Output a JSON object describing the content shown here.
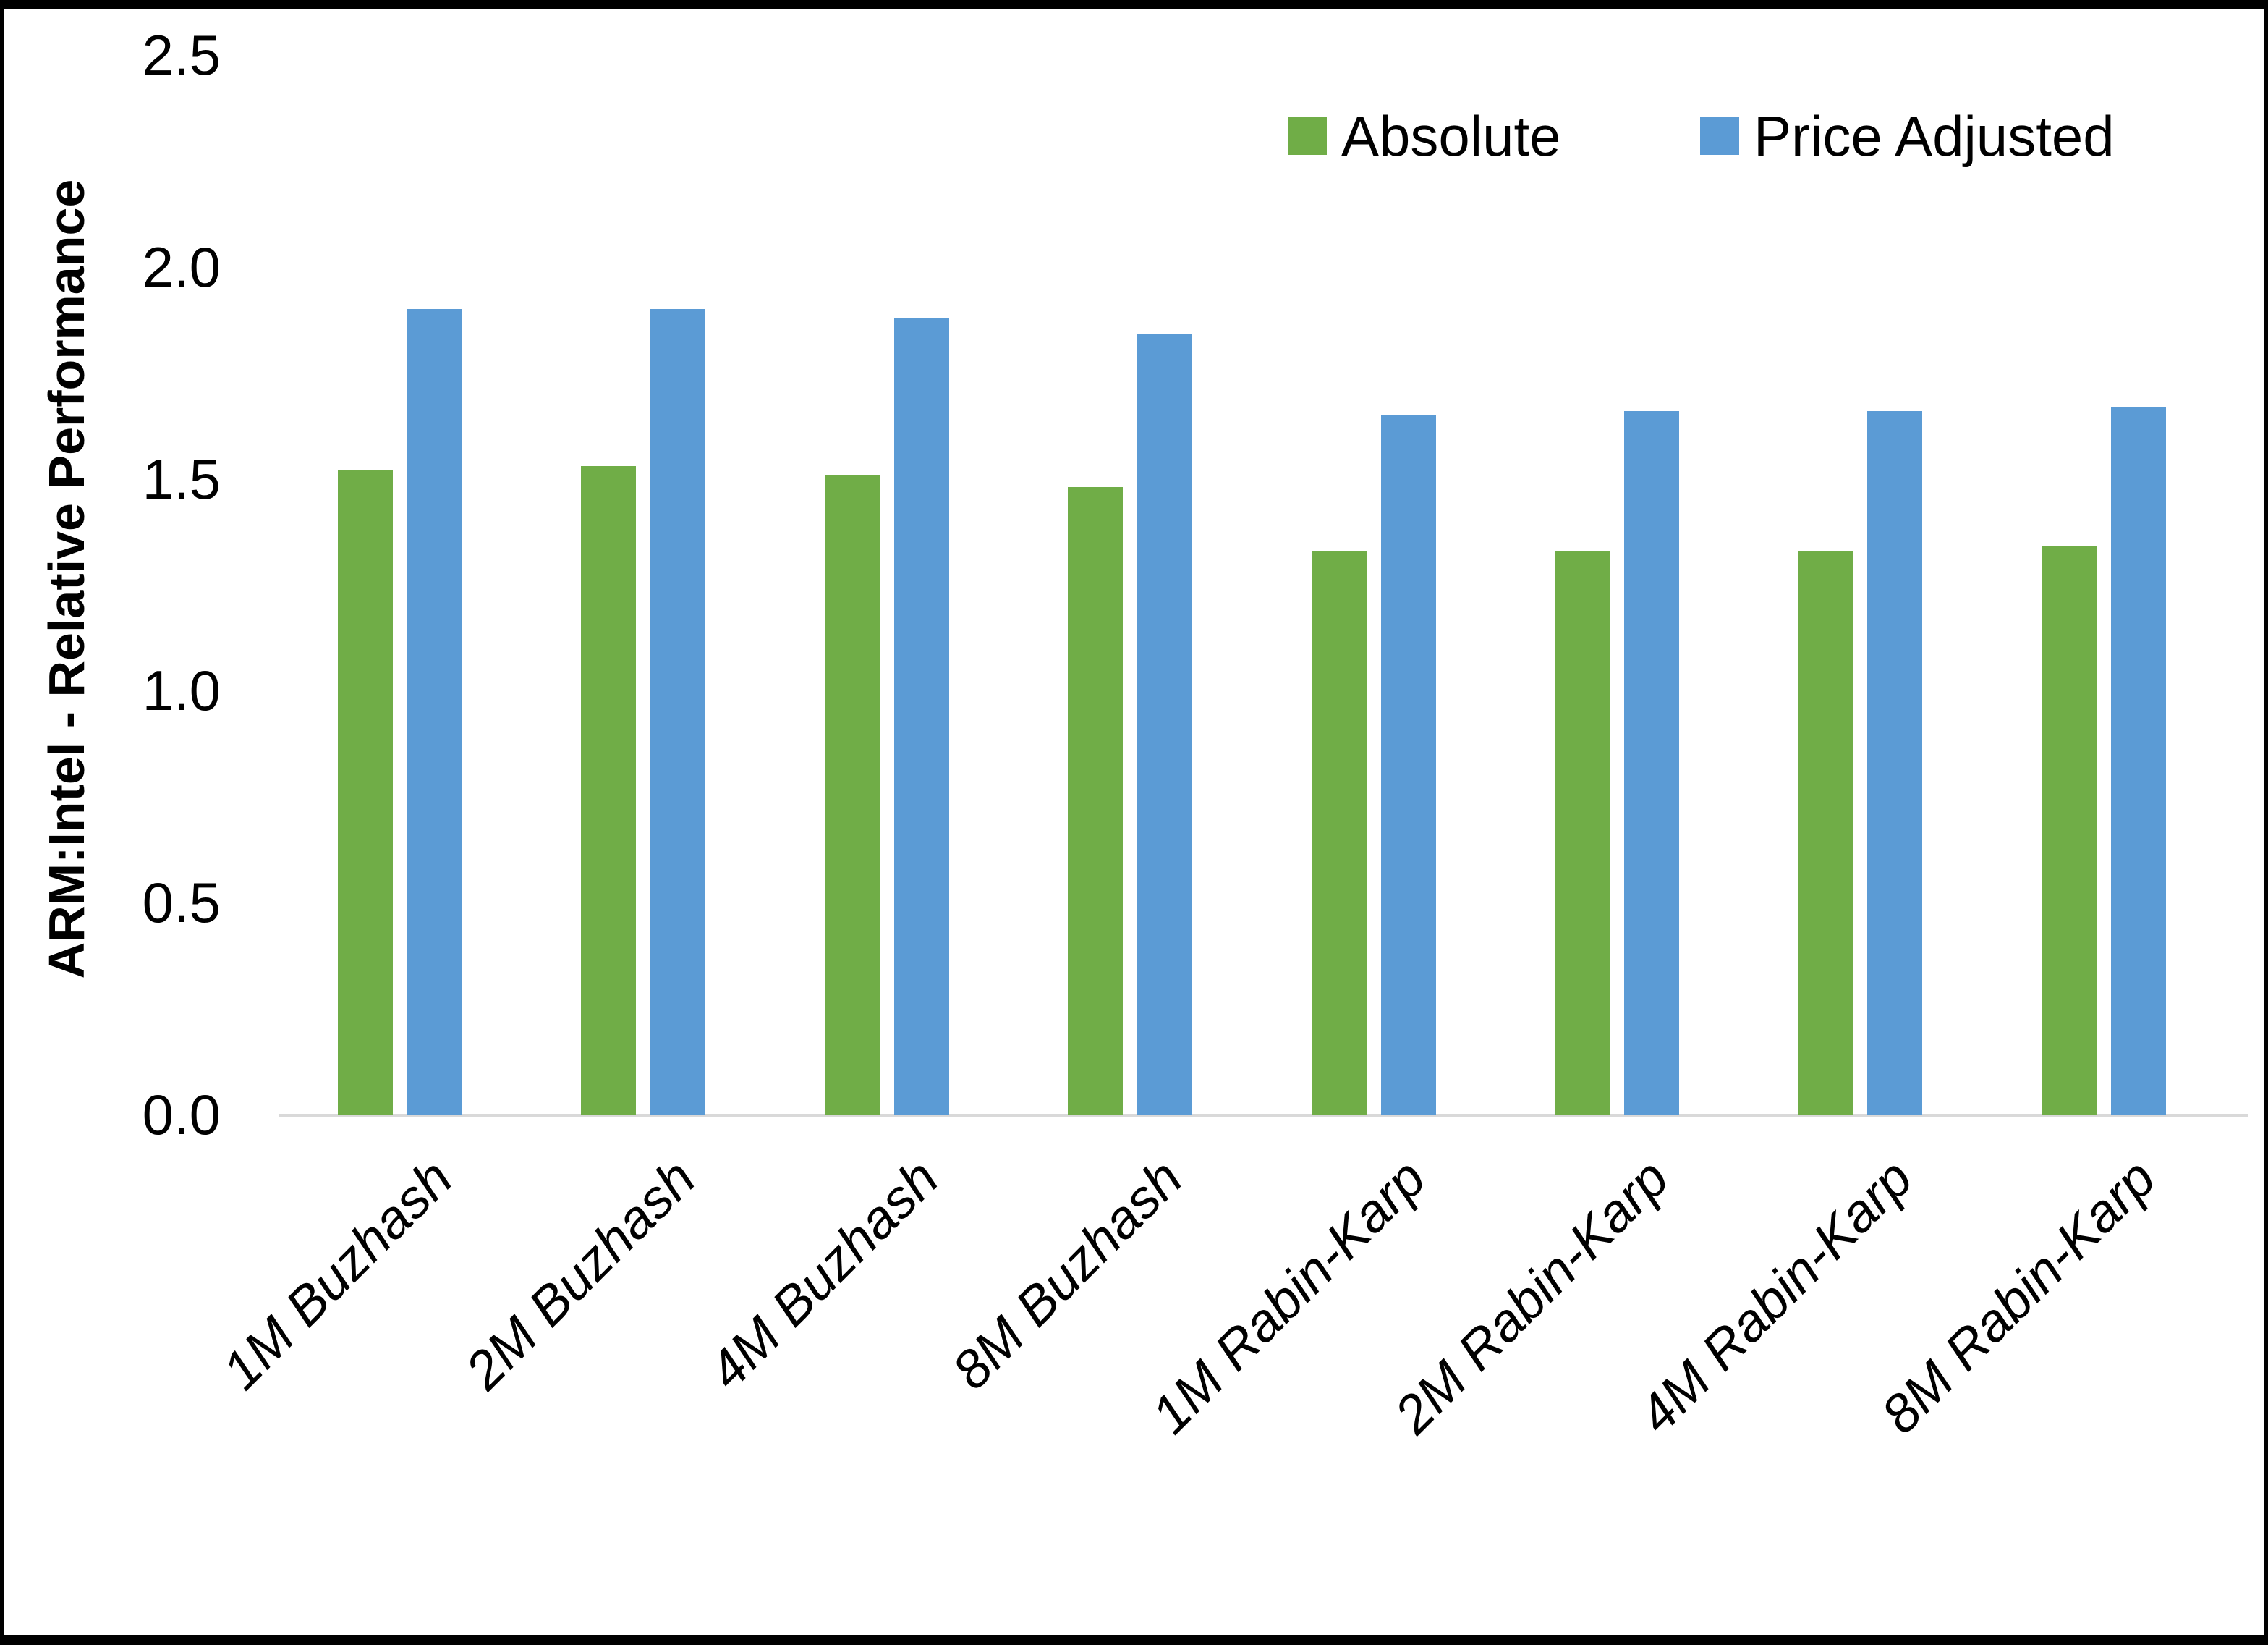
{
  "chart_data": {
    "type": "bar",
    "title": "",
    "xlabel": "",
    "ylabel": "ARM:Intel - Relative Performance",
    "ylim": [
      0,
      2.5
    ],
    "yticks": [
      "0.0",
      "0.5",
      "1.0",
      "1.5",
      "2.0",
      "2.5"
    ],
    "grid": false,
    "legend_position": "top-right",
    "categories": [
      "1M Buzhash",
      "2M Buzhash",
      "4M Buzhash",
      "8M Buzhash",
      "1M Rabin-Karp",
      "2M Rabin-Karp",
      "4M Rabin-Karp",
      "8M Rabin-Karp"
    ],
    "series": [
      {
        "name": "Absolute",
        "color": "#70AD47",
        "values": [
          1.52,
          1.53,
          1.51,
          1.48,
          1.33,
          1.33,
          1.33,
          1.34
        ]
      },
      {
        "name": "Price Adjusted",
        "color": "#5B9BD5",
        "values": [
          1.9,
          1.9,
          1.88,
          1.84,
          1.65,
          1.66,
          1.66,
          1.67
        ]
      }
    ]
  }
}
